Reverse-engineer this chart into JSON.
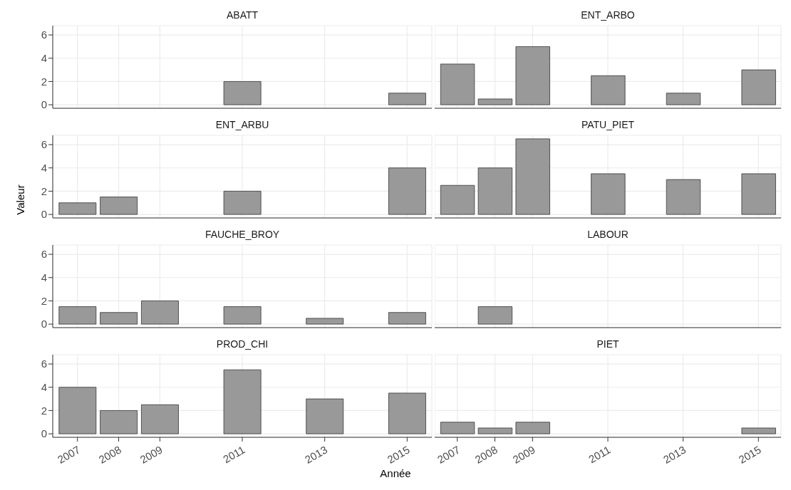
{
  "chart_data": [
    {
      "type": "bar",
      "title": "ABATT",
      "x": [
        2007,
        2008,
        2009,
        2011,
        2013,
        2015
      ],
      "values": [
        0,
        0,
        0,
        2,
        0,
        1
      ],
      "color": "#999999",
      "xlim": [
        2006.4,
        2015.6
      ],
      "ylim": [
        -0.3,
        6.8
      ],
      "yticks": [
        0,
        2,
        4,
        6
      ],
      "xticks": [
        2007,
        2008,
        2009,
        2011,
        2013,
        2015
      ],
      "grid": true,
      "tick_labels": "y"
    },
    {
      "type": "bar",
      "title": "ENT_ARBO",
      "x": [
        2007,
        2008,
        2009,
        2011,
        2013,
        2015
      ],
      "values": [
        3.5,
        0.5,
        5,
        2.5,
        1,
        3
      ],
      "color": "#999999",
      "xlim": [
        2006.4,
        2015.6
      ],
      "ylim": [
        -0.3,
        6.8
      ],
      "yticks": [
        0,
        2,
        4,
        6
      ],
      "xticks": [
        2007,
        2008,
        2009,
        2011,
        2013,
        2015
      ],
      "grid": true,
      "tick_labels": false
    },
    {
      "type": "bar",
      "title": "ENT_ARBU",
      "ylabel": "Valeur",
      "x": [
        2007,
        2008,
        2009,
        2011,
        2013,
        2015
      ],
      "values": [
        1,
        1.5,
        0,
        2,
        0,
        4
      ],
      "color": "#999999",
      "xlim": [
        2006.4,
        2015.6
      ],
      "ylim": [
        -0.3,
        6.8
      ],
      "yticks": [
        0,
        2,
        4,
        6
      ],
      "xticks": [
        2007,
        2008,
        2009,
        2011,
        2013,
        2015
      ],
      "grid": true,
      "tick_labels": "y"
    },
    {
      "type": "bar",
      "title": "PATU_PIET",
      "x": [
        2007,
        2008,
        2009,
        2011,
        2013,
        2015
      ],
      "values": [
        2.5,
        4,
        6.5,
        3.5,
        3,
        3.5
      ],
      "color": "#999999",
      "xlim": [
        2006.4,
        2015.6
      ],
      "ylim": [
        -0.3,
        6.8
      ],
      "yticks": [
        0,
        2,
        4,
        6
      ],
      "xticks": [
        2007,
        2008,
        2009,
        2011,
        2013,
        2015
      ],
      "grid": true,
      "tick_labels": false
    },
    {
      "type": "bar",
      "title": "FAUCHE_BROY",
      "x": [
        2007,
        2008,
        2009,
        2011,
        2013,
        2015
      ],
      "values": [
        1.5,
        1,
        2,
        1.5,
        0.5,
        1
      ],
      "color": "#999999",
      "xlim": [
        2006.4,
        2015.6
      ],
      "ylim": [
        -0.3,
        6.8
      ],
      "yticks": [
        0,
        2,
        4,
        6
      ],
      "xticks": [
        2007,
        2008,
        2009,
        2011,
        2013,
        2015
      ],
      "grid": true,
      "tick_labels": "y"
    },
    {
      "type": "bar",
      "title": "LABOUR",
      "x": [
        2007,
        2008,
        2009,
        2011,
        2013,
        2015
      ],
      "values": [
        0,
        1.5,
        0,
        0,
        0,
        0
      ],
      "color": "#999999",
      "xlim": [
        2006.4,
        2015.6
      ],
      "ylim": [
        -0.3,
        6.8
      ],
      "yticks": [
        0,
        2,
        4,
        6
      ],
      "xticks": [
        2007,
        2008,
        2009,
        2011,
        2013,
        2015
      ],
      "grid": true,
      "tick_labels": false
    },
    {
      "type": "bar",
      "title": "PROD_CHI",
      "xlabel": "Année",
      "x": [
        2007,
        2008,
        2009,
        2011,
        2013,
        2015
      ],
      "values": [
        4,
        2,
        2.5,
        5.5,
        3,
        3.5
      ],
      "color": "#999999",
      "xlim": [
        2006.4,
        2015.6
      ],
      "ylim": [
        -0.3,
        6.8
      ],
      "yticks": [
        0,
        2,
        4,
        6
      ],
      "xticks": [
        2007,
        2008,
        2009,
        2011,
        2013,
        2015
      ],
      "grid": true
    },
    {
      "type": "bar",
      "title": "PIET",
      "x": [
        2007,
        2008,
        2009,
        2011,
        2013,
        2015
      ],
      "values": [
        1,
        0.5,
        1,
        0,
        0,
        0.5
      ],
      "color": "#999999",
      "xlim": [
        2006.4,
        2015.6
      ],
      "ylim": [
        -0.3,
        6.8
      ],
      "yticks": [
        0,
        2,
        4,
        6
      ],
      "xticks": [
        2007,
        2008,
        2009,
        2011,
        2013,
        2015
      ],
      "grid": true,
      "tick_labels": "x"
    }
  ]
}
